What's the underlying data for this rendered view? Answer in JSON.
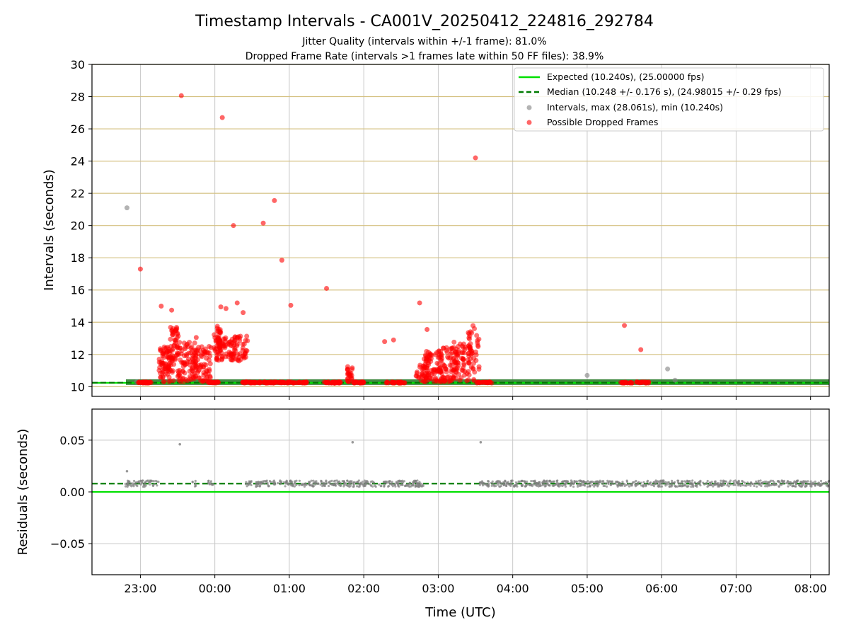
{
  "title": "Timestamp Intervals - CA001V_20250412_224816_292784",
  "subtitles": [
    "Jitter Quality (intervals within +/-1 frame): 81.0%",
    "Dropped Frame Rate (intervals >1 frames late within 50 FF files): 38.9%"
  ],
  "colors": {
    "expected": "#00e000",
    "median": "#007a00",
    "intervals": "#808080",
    "dropped": "#ff0000",
    "band": "#2f7d2f",
    "hgrid_top": "#d4c080",
    "grid": "#c8c8c8"
  },
  "chart_data": [
    {
      "type": "scatter",
      "xlabel": "",
      "ylabel": "Intervals (seconds)",
      "ylim": [
        9.4,
        30
      ],
      "yticks": [
        10,
        12,
        14,
        16,
        18,
        20,
        22,
        24,
        26,
        28,
        30
      ],
      "xlim_hours": [
        -1.65,
        8.25
      ],
      "xticks": [
        {
          "h": -1,
          "label": "23:00"
        },
        {
          "h": 0,
          "label": "00:00"
        },
        {
          "h": 1,
          "label": "01:00"
        },
        {
          "h": 2,
          "label": "02:00"
        },
        {
          "h": 3,
          "label": "03:00"
        },
        {
          "h": 4,
          "label": "04:00"
        },
        {
          "h": 5,
          "label": "05:00"
        },
        {
          "h": 6,
          "label": "06:00"
        },
        {
          "h": 7,
          "label": "07:00"
        },
        {
          "h": 8,
          "label": "08:00"
        }
      ],
      "grid": true,
      "legend_position": "top-right",
      "legend": [
        "Expected (10.240s), (25.00000 fps)",
        "Median (10.248 +/- 0.176 s), (24.98015 +/- 0.29 fps)",
        "Intervals, max (28.061s), min (10.240s)",
        "Possible Dropped Frames"
      ],
      "expected": 10.24,
      "median": 10.248,
      "series": [
        {
          "name": "Intervals",
          "points": [
            [
              -1.18,
              21.1
            ],
            [
              5.0,
              10.7
            ],
            [
              6.08,
              11.1
            ],
            [
              6.18,
              10.4
            ],
            [
              -1.05,
              10.3
            ]
          ]
        },
        {
          "name": "Possible Dropped Frames",
          "points": [
            [
              -1.0,
              17.3
            ],
            [
              -0.45,
              28.06
            ],
            [
              0.1,
              26.7
            ],
            [
              0.25,
              20.0
            ],
            [
              0.65,
              20.15
            ],
            [
              0.8,
              21.55
            ],
            [
              0.9,
              17.85
            ],
            [
              1.02,
              15.05
            ],
            [
              1.5,
              16.1
            ],
            [
              3.5,
              24.2
            ],
            [
              -0.72,
              15.0
            ],
            [
              -0.58,
              14.75
            ],
            [
              -0.25,
              13.05
            ],
            [
              0.08,
              14.95
            ],
            [
              0.15,
              14.85
            ],
            [
              0.3,
              15.2
            ],
            [
              0.38,
              14.6
            ],
            [
              2.28,
              12.8
            ],
            [
              2.4,
              12.9
            ],
            [
              2.75,
              15.2
            ],
            [
              2.85,
              13.55
            ],
            [
              5.5,
              13.8
            ],
            [
              5.72,
              12.3
            ]
          ],
          "clusters": [
            {
              "x": [
                -1.05,
                -0.85
              ],
              "y": [
                10.22,
                10.3
              ],
              "n": 30
            },
            {
              "x": [
                -0.75,
                -0.55
              ],
              "y": [
                10.3,
                12.5
              ],
              "n": 80
            },
            {
              "x": [
                -0.6,
                -0.48
              ],
              "y": [
                11.5,
                13.7
              ],
              "n": 40
            },
            {
              "x": [
                -0.5,
                -0.25
              ],
              "y": [
                10.3,
                12.8
              ],
              "n": 80
            },
            {
              "x": [
                -0.3,
                -0.05
              ],
              "y": [
                10.3,
                12.5
              ],
              "n": 70
            },
            {
              "x": [
                -0.1,
                0.05
              ],
              "y": [
                10.22,
                10.3
              ],
              "n": 20
            },
            {
              "x": [
                -0.02,
                0.08
              ],
              "y": [
                12.2,
                13.8
              ],
              "n": 30
            },
            {
              "x": [
                0.02,
                0.44
              ],
              "y": [
                11.6,
                13.2
              ],
              "n": 110
            },
            {
              "x": [
                0.37,
                0.62
              ],
              "y": [
                10.22,
                10.3
              ],
              "n": 40
            },
            {
              "x": [
                0.65,
                1.25
              ],
              "y": [
                10.22,
                10.3
              ],
              "n": 80
            },
            {
              "x": [
                1.45,
                1.7
              ],
              "y": [
                10.22,
                10.3
              ],
              "n": 35
            },
            {
              "x": [
                1.78,
                1.85
              ],
              "y": [
                10.3,
                11.3
              ],
              "n": 25
            },
            {
              "x": [
                1.85,
                2.0
              ],
              "y": [
                10.22,
                10.3
              ],
              "n": 25
            },
            {
              "x": [
                2.28,
                2.55
              ],
              "y": [
                10.22,
                10.3
              ],
              "n": 35
            },
            {
              "x": [
                2.7,
                2.85
              ],
              "y": [
                10.3,
                11.5
              ],
              "n": 30
            },
            {
              "x": [
                2.8,
                3.05
              ],
              "y": [
                10.3,
                12.2
              ],
              "n": 70
            },
            {
              "x": [
                3.0,
                3.25
              ],
              "y": [
                10.3,
                12.5
              ],
              "n": 70
            },
            {
              "x": [
                3.2,
                3.45
              ],
              "y": [
                10.3,
                12.8
              ],
              "n": 60
            },
            {
              "x": [
                3.4,
                3.55
              ],
              "y": [
                10.3,
                13.8
              ],
              "n": 40
            },
            {
              "x": [
                3.52,
                3.72
              ],
              "y": [
                10.22,
                10.3
              ],
              "n": 25
            },
            {
              "x": [
                5.45,
                5.62
              ],
              "y": [
                10.22,
                10.3
              ],
              "n": 20
            },
            {
              "x": [
                5.65,
                5.83
              ],
              "y": [
                10.22,
                10.3
              ],
              "n": 20
            }
          ]
        }
      ]
    },
    {
      "type": "scatter",
      "xlabel": "Time (UTC)",
      "ylabel": "Residuals (seconds)",
      "ylim": [
        -0.08,
        0.08
      ],
      "yticks": [
        {
          "v": 0.05,
          "label": "0.05"
        },
        {
          "v": 0.0,
          "label": "0.00"
        },
        {
          "v": -0.05,
          "label": "−0.05"
        }
      ],
      "expected": 0.0,
      "median": 0.008,
      "series": [
        {
          "name": "Residuals",
          "points": [
            [
              -1.18,
              0.02
            ],
            [
              -0.47,
              0.046
            ],
            [
              1.85,
              0.048
            ],
            [
              3.57,
              0.048
            ]
          ],
          "bands": [
            [
              -1.2,
              -0.75
            ],
            [
              -0.3,
              -0.25
            ],
            [
              -0.1,
              -0.02
            ],
            [
              0.4,
              2.8
            ],
            [
              3.55,
              8.25
            ]
          ]
        }
      ]
    }
  ]
}
